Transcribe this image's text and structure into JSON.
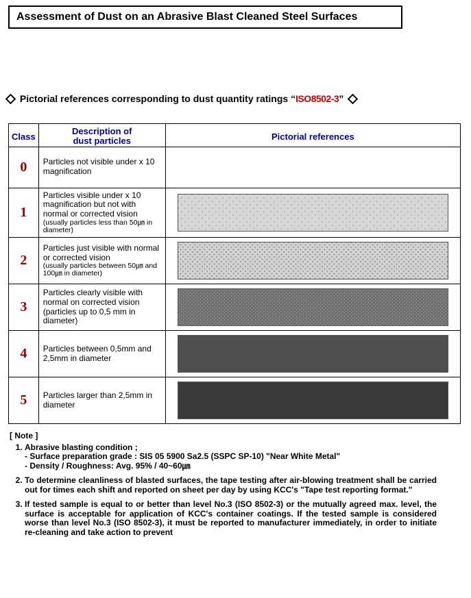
{
  "title": "Assessment of Dust on an Abrasive Blast Cleaned Steel Surfaces",
  "title_fontsize": 16,
  "heading": {
    "pre": "Pictorial references corresponding to dust quantity ratings “",
    "iso": "ISO8502-3",
    "post": "”",
    "fontsize": 14,
    "iso_color": "#cc0000"
  },
  "table": {
    "header_color": "#000099",
    "class_color": "#990000",
    "background_color": "#ffffff",
    "border_color": "#000000",
    "headers": {
      "class": "Class",
      "desc_line1": "Description of",
      "desc_line2": "dust particles",
      "pic": "Pictorial references"
    },
    "header_fontsize": 13,
    "class_fontsize": 20,
    "desc_fontsize": 12,
    "rows": [
      {
        "class": "0",
        "desc": "Particles not visible under x 10 magnification",
        "sub": "",
        "swatch": {
          "show": false
        }
      },
      {
        "class": "1",
        "desc": "Particles visible under x 10 magnification but not with normal or corrected vision",
        "sub": "(usually particles less than 50㎛ in diameter)",
        "swatch": {
          "show": true,
          "bg": "#d7d7d7",
          "dot_color": "#aeaeae",
          "dot_size_px": 1,
          "dot_density": "sparse"
        }
      },
      {
        "class": "2",
        "desc": "Particles just visible with normal or corrected vision",
        "sub": "(usually particles between 50㎛ and 100㎛ in diameter)",
        "swatch": {
          "show": true,
          "bg": "#d2d2d2",
          "dot_color": "#8b8b8b",
          "dot_size_px": 1,
          "dot_density": "medium"
        }
      },
      {
        "class": "3",
        "desc": "Particles clearly visible with normal on corrected vision (particles up to 0,5 mm in diameter)",
        "sub": "",
        "swatch": {
          "show": true,
          "bg": "#bcbcbc",
          "dot_color": "#6f6f6f",
          "dot_size_px": 2,
          "dot_density": "dense"
        }
      },
      {
        "class": "4",
        "desc": "Particles between 0,5mm and 2,5mm in diameter",
        "sub": "",
        "swatch": {
          "show": true,
          "bg": "#8a8a8a",
          "dot_color": "#4e4e4e",
          "dot_size_px": 3,
          "dot_density": "very-dense"
        }
      },
      {
        "class": "5",
        "desc": "Particles larger than 2,5mm in diameter",
        "sub": "",
        "swatch": {
          "show": true,
          "bg": "#6e6e6e",
          "dot_color": "#3a3a3a",
          "dot_size_px": 4,
          "dot_density": "very-dense"
        }
      }
    ]
  },
  "notes": {
    "heading": "[ Note ]",
    "heading_fontsize": 12,
    "item_fontsize": 12,
    "items": [
      {
        "main": "Abrasive blasting condition ;",
        "subs": [
          "- Surface preparation grade : SIS 05 5900 Sa2.5 (SSPC SP-10) \"Near White Metal\"",
          "- Density / Roughness: Avg. 95% / 40~60㎛"
        ]
      },
      {
        "main": "To determine cleanliness of blasted surfaces, the tape testing after air-blowing treatment shall be carried out for times each shift and reported on sheet per day by using KCC's \"Tape test reporting format.\"",
        "subs": []
      },
      {
        "main": "If tested sample is equal to or better than level No.3 (ISO 8502-3) or the mutually agreed max. level, the surface is acceptable for application of KCC's container coatings.  If the tested sample is considered worse than level No.3 (ISO 8502-3), it must be reported to manufacturer immediately, in order to initiate re-cleaning and take action to prevent",
        "subs": []
      }
    ]
  }
}
